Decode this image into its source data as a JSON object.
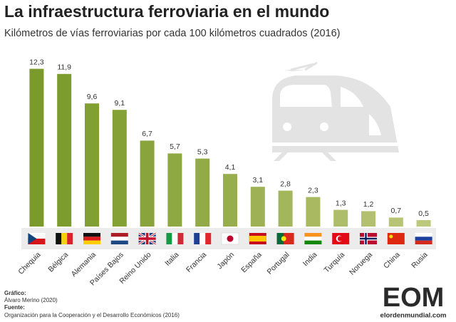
{
  "chart_data": {
    "type": "bar",
    "title": "La infraestructura ferroviaria en el mundo",
    "subtitle": "Kilómetros de vías ferroviarias por cada 100 kilómetros cuadrados (2016)",
    "categories": [
      "Chequia",
      "Bélgica",
      "Alemania",
      "Países Bajos",
      "Reino Unido",
      "Italia",
      "Francia",
      "Japón",
      "España",
      "Portugal",
      "India",
      "Turquía",
      "Noruega",
      "China",
      "Rusia"
    ],
    "values": [
      12.3,
      11.9,
      9.6,
      9.1,
      6.7,
      5.7,
      5.3,
      4.1,
      3.1,
      2.8,
      2.3,
      1.3,
      1.2,
      0.7,
      0.5
    ],
    "value_labels": [
      "12,3",
      "11,9",
      "9,6",
      "9,1",
      "6,7",
      "5,7",
      "5,3",
      "4,1",
      "3,1",
      "2,8",
      "2,3",
      "1,3",
      "1,2",
      "0,7",
      "0,5"
    ],
    "colors": [
      "#7a9a2b",
      "#7d9c2e",
      "#819f33",
      "#84a136",
      "#89a43c",
      "#8ea842",
      "#92aa47",
      "#98ae4e",
      "#9eb255",
      "#a3b65c",
      "#a8b962",
      "#adbd69",
      "#b2c06f",
      "#b7c475",
      "#bcc87b"
    ],
    "ylim": [
      0,
      13
    ],
    "credits": [
      "Gráfico:",
      "Álvaro Merino (2020)",
      "Fuente:",
      "Organización para la Cooperación y el Desarrollo Económicos (2016)"
    ],
    "logo": "EOM",
    "logo_url": "elordenmundial.com"
  }
}
